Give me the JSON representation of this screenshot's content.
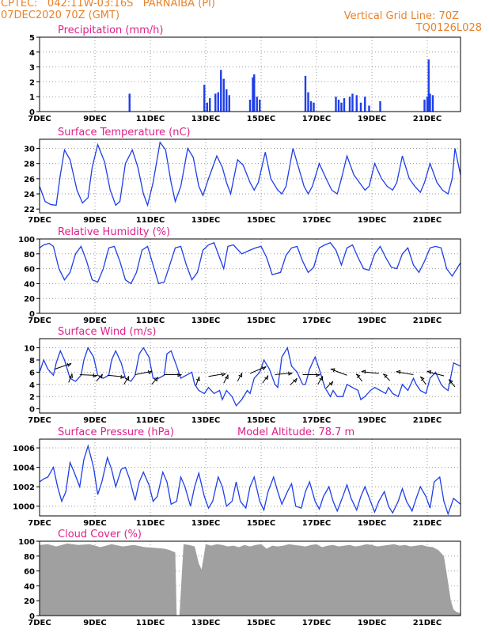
{
  "header": {
    "line1": "CPTEC:   042:11W-03:16S   PARNAIBA (PI)",
    "line2": "07DEC2020 70Z (GMT)",
    "right1": "Vertical Grid Line: 70Z",
    "right2": "TQ0126L028"
  },
  "colors": {
    "header": "#e8822a",
    "title": "#e0208a",
    "series": "#1f3fe8",
    "cloud": "#a0a0a0",
    "wind_arrow": "#000000"
  },
  "x_tick_labels": [
    "7DEC",
    "9DEC",
    "11DEC",
    "13DEC",
    "15DEC",
    "17DEC",
    "19DEC",
    "21DEC"
  ],
  "x_tick_days": [
    7,
    9,
    11,
    13,
    15,
    17,
    19,
    21
  ],
  "chart_data": [
    {
      "id": "precip",
      "type": "bar",
      "title": "Precipitation (mm/h)",
      "ylim": [
        0,
        5
      ],
      "yticks": [
        0,
        1,
        2,
        3,
        4,
        5
      ],
      "xlim": [
        7,
        22.2
      ],
      "x": [
        10.25,
        12.95,
        13.05,
        13.15,
        13.35,
        13.45,
        13.55,
        13.65,
        13.75,
        13.85,
        14.6,
        14.7,
        14.75,
        14.85,
        14.95,
        16.6,
        16.7,
        16.8,
        16.9,
        17.7,
        17.8,
        17.9,
        18.0,
        18.2,
        18.3,
        18.45,
        18.6,
        18.75,
        18.9,
        19.3,
        20.9,
        21.0,
        21.05,
        21.1,
        21.2
      ],
      "values": [
        1.2,
        1.8,
        0.6,
        0.9,
        1.2,
        1.3,
        2.8,
        2.2,
        1.5,
        1.1,
        0.8,
        2.3,
        2.5,
        1.0,
        0.8,
        2.4,
        1.3,
        0.7,
        0.6,
        1.0,
        0.8,
        0.6,
        0.9,
        1.0,
        1.2,
        1.1,
        0.6,
        1.0,
        0.4,
        0.7,
        0.8,
        1.0,
        3.5,
        1.2,
        1.1
      ]
    },
    {
      "id": "temp",
      "type": "line",
      "title": "Surface Temperature (nC)",
      "ylim": [
        21.5,
        31.2
      ],
      "yticks": [
        22,
        24,
        26,
        28,
        30
      ],
      "xlim": [
        7,
        22.2
      ],
      "x": [
        7.0,
        7.1,
        7.2,
        7.3,
        7.4,
        7.6,
        7.75,
        7.9,
        8.1,
        8.35,
        8.55,
        8.75,
        8.9,
        9.1,
        9.35,
        9.55,
        9.75,
        9.9,
        10.1,
        10.35,
        10.55,
        10.75,
        10.9,
        11.1,
        11.35,
        11.55,
        11.75,
        11.9,
        12.1,
        12.35,
        12.55,
        12.75,
        12.9,
        13.1,
        13.4,
        13.6,
        13.75,
        13.9,
        14.15,
        14.35,
        14.6,
        14.75,
        14.9,
        15.15,
        15.35,
        15.6,
        15.75,
        15.9,
        16.15,
        16.35,
        16.55,
        16.7,
        16.85,
        17.1,
        17.35,
        17.55,
        17.75,
        17.9,
        18.1,
        18.35,
        18.55,
        18.75,
        18.9,
        19.1,
        19.35,
        19.55,
        19.75,
        19.9,
        20.1,
        20.35,
        20.55,
        20.75,
        20.9,
        21.1,
        21.35,
        21.55,
        21.75,
        21.9,
        22.0,
        22.2
      ],
      "values": [
        25.0,
        24.0,
        23.0,
        22.8,
        22.6,
        22.5,
        26.5,
        29.8,
        28.5,
        24.5,
        22.8,
        23.5,
        27.5,
        30.5,
        28.2,
        24.5,
        22.5,
        23.0,
        28.0,
        29.8,
        27.5,
        24.0,
        22.5,
        25.5,
        30.8,
        29.8,
        25.5,
        23.0,
        25.0,
        30.0,
        28.8,
        25.0,
        23.8,
        26.0,
        29.0,
        27.5,
        25.5,
        24.0,
        28.5,
        27.8,
        25.5,
        24.5,
        25.5,
        29.5,
        26.0,
        24.5,
        24.0,
        25.0,
        30.0,
        27.5,
        25.0,
        24.0,
        25.0,
        28.0,
        26.0,
        24.5,
        24.0,
        26.0,
        29.0,
        26.5,
        25.5,
        24.5,
        25.0,
        28.0,
        26.0,
        25.0,
        24.5,
        25.5,
        29.0,
        26.0,
        25.0,
        24.2,
        25.5,
        28.0,
        25.5,
        24.5,
        24.0,
        26.0,
        30.0,
        26.5
      ]
    },
    {
      "id": "rh",
      "type": "line",
      "title": "Relative Humidity (%)",
      "ylim": [
        0,
        100
      ],
      "yticks": [
        0,
        20,
        40,
        60,
        80,
        100
      ],
      "xlim": [
        7,
        22.2
      ],
      "x": [
        7.0,
        7.15,
        7.35,
        7.5,
        7.7,
        7.9,
        8.1,
        8.3,
        8.5,
        8.7,
        8.9,
        9.1,
        9.3,
        9.5,
        9.7,
        9.9,
        10.1,
        10.3,
        10.5,
        10.7,
        10.9,
        11.1,
        11.3,
        11.5,
        11.7,
        11.9,
        12.1,
        12.3,
        12.5,
        12.7,
        12.9,
        13.1,
        13.3,
        13.5,
        13.65,
        13.8,
        14.0,
        14.3,
        14.6,
        14.8,
        15.0,
        15.2,
        15.4,
        15.7,
        15.9,
        16.1,
        16.3,
        16.5,
        16.7,
        16.9,
        17.1,
        17.3,
        17.5,
        17.7,
        17.9,
        18.1,
        18.3,
        18.5,
        18.7,
        18.9,
        19.1,
        19.3,
        19.5,
        19.7,
        19.9,
        20.1,
        20.3,
        20.5,
        20.7,
        20.9,
        21.1,
        21.3,
        21.5,
        21.7,
        21.9,
        22.2
      ],
      "values": [
        88,
        92,
        94,
        90,
        60,
        45,
        55,
        80,
        90,
        70,
        45,
        42,
        60,
        88,
        90,
        70,
        45,
        40,
        55,
        85,
        90,
        65,
        40,
        42,
        65,
        88,
        90,
        65,
        45,
        55,
        85,
        92,
        95,
        75,
        60,
        90,
        92,
        80,
        85,
        88,
        90,
        75,
        52,
        55,
        78,
        88,
        90,
        70,
        55,
        62,
        88,
        92,
        95,
        85,
        65,
        88,
        92,
        75,
        60,
        58,
        80,
        90,
        75,
        62,
        60,
        80,
        88,
        65,
        55,
        70,
        88,
        90,
        88,
        60,
        50,
        68
      ]
    },
    {
      "id": "wind",
      "type": "line",
      "title": "Surface Wind (m/s)",
      "ylim": [
        -0.7,
        11.5
      ],
      "yticks": [
        0,
        2,
        4,
        6,
        8,
        10
      ],
      "xlim": [
        7,
        22.2
      ],
      "x": [
        7.0,
        7.15,
        7.3,
        7.5,
        7.6,
        7.75,
        7.9,
        8.1,
        8.3,
        8.5,
        8.6,
        8.75,
        8.95,
        9.1,
        9.3,
        9.5,
        9.6,
        9.75,
        9.95,
        10.1,
        10.3,
        10.45,
        10.6,
        10.75,
        10.95,
        11.1,
        11.3,
        11.5,
        11.6,
        11.75,
        11.95,
        12.1,
        12.3,
        12.5,
        12.6,
        12.75,
        12.95,
        13.1,
        13.3,
        13.5,
        13.6,
        13.75,
        13.95,
        14.1,
        14.3,
        14.5,
        14.6,
        14.75,
        14.95,
        15.1,
        15.3,
        15.5,
        15.6,
        15.75,
        15.95,
        16.1,
        16.3,
        16.5,
        16.6,
        16.75,
        16.95,
        17.1,
        17.3,
        17.5,
        17.6,
        17.75,
        17.95,
        18.1,
        18.3,
        18.5,
        18.6,
        18.75,
        18.95,
        19.1,
        19.3,
        19.5,
        19.6,
        19.75,
        19.95,
        20.1,
        20.3,
        20.5,
        20.6,
        20.75,
        20.95,
        21.1,
        21.3,
        21.5,
        21.6,
        21.75,
        21.95,
        22.2
      ],
      "values": [
        6.0,
        8.0,
        6.5,
        5.5,
        7.5,
        9.5,
        8.0,
        5.0,
        4.5,
        5.5,
        8.0,
        10.0,
        8.5,
        5.5,
        5.0,
        5.5,
        8.0,
        9.5,
        7.5,
        5.0,
        4.5,
        5.5,
        9.0,
        10.0,
        8.5,
        5.0,
        5.0,
        5.5,
        9.0,
        9.5,
        7.0,
        5.0,
        5.5,
        6.0,
        4.0,
        3.0,
        2.5,
        3.5,
        2.5,
        3.0,
        1.5,
        3.0,
        2.0,
        0.5,
        1.5,
        3.0,
        2.5,
        5.0,
        6.0,
        8.0,
        6.5,
        4.0,
        3.5,
        8.5,
        10.0,
        7.0,
        6.0,
        4.0,
        4.0,
        6.5,
        8.5,
        6.5,
        3.5,
        2.0,
        3.0,
        2.0,
        2.0,
        4.0,
        3.5,
        3.0,
        1.5,
        2.0,
        3.0,
        3.5,
        3.0,
        2.5,
        3.5,
        2.5,
        2.0,
        4.0,
        3.0,
        5.0,
        4.0,
        3.0,
        2.5,
        5.0,
        6.0,
        4.0,
        3.5,
        3.0,
        7.5,
        7.0
      ],
      "arrows": [
        {
          "x": 7.55,
          "y": 6.5,
          "u": 1.0,
          "v": 0.35
        },
        {
          "x": 8.45,
          "y": 5.6,
          "u": 1.0,
          "v": -0.05
        },
        {
          "x": 9.45,
          "y": 5.5,
          "u": 1.0,
          "v": -0.1
        },
        {
          "x": 10.45,
          "y": 5.6,
          "u": 1.0,
          "v": 0.2
        },
        {
          "x": 11.5,
          "y": 5.6,
          "u": 1.0,
          "v": 0.0
        },
        {
          "x": 13.1,
          "y": 5.3,
          "u": 0.6,
          "v": 0.1
        },
        {
          "x": 14.6,
          "y": 5.8,
          "u": 0.7,
          "v": 0.3
        },
        {
          "x": 15.5,
          "y": 5.6,
          "u": 1.0,
          "v": 0.1
        },
        {
          "x": 16.5,
          "y": 5.6,
          "u": 1.0,
          "v": 0.0
        },
        {
          "x": 18.1,
          "y": 5.5,
          "u": -0.8,
          "v": 0.3
        },
        {
          "x": 19.25,
          "y": 5.8,
          "u": -1.0,
          "v": 0.1
        },
        {
          "x": 20.5,
          "y": 5.6,
          "u": -0.9,
          "v": 0.15
        },
        {
          "x": 21.6,
          "y": 5.4,
          "u": -1.0,
          "v": 0.25
        }
      ],
      "arrow_tails": [
        {
          "x": 8.05,
          "y": 4.3,
          "u": 0.3,
          "v": 0.8
        },
        {
          "x": 9.05,
          "y": 4.5,
          "u": 0.5,
          "v": 0.6
        },
        {
          "x": 10.05,
          "y": 4.0,
          "u": 0.4,
          "v": 0.7
        },
        {
          "x": 11.05,
          "y": 4.0,
          "u": 0.5,
          "v": 0.6
        },
        {
          "x": 12.65,
          "y": 3.8,
          "u": 0.3,
          "v": 0.9
        },
        {
          "x": 13.65,
          "y": 4.2,
          "u": 0.4,
          "v": 0.8
        },
        {
          "x": 14.15,
          "y": 4.5,
          "u": 0.4,
          "v": 0.8
        },
        {
          "x": 15.05,
          "y": 4.2,
          "u": 0.5,
          "v": 0.7
        },
        {
          "x": 16.05,
          "y": 3.9,
          "u": 0.6,
          "v": 0.6
        },
        {
          "x": 17.05,
          "y": 4.0,
          "u": 0.4,
          "v": 0.7
        },
        {
          "x": 17.35,
          "y": 3.4,
          "u": 0.6,
          "v": 0.6
        },
        {
          "x": 18.65,
          "y": 4.5,
          "u": -0.5,
          "v": 0.6
        },
        {
          "x": 19.65,
          "y": 4.6,
          "u": -0.6,
          "v": 0.6
        },
        {
          "x": 20.95,
          "y": 4.0,
          "u": -0.5,
          "v": 0.7
        },
        {
          "x": 22.0,
          "y": 3.6,
          "u": -0.6,
          "v": 0.7
        }
      ]
    },
    {
      "id": "press",
      "type": "line",
      "title": "Surface Pressure (hPa)",
      "annotation": "Model Altitude: 78.7 m",
      "ylim": [
        999.0,
        1006.9
      ],
      "yticks": [
        1000,
        1002,
        1004,
        1006
      ],
      "xlim": [
        7,
        22.2
      ],
      "x": [
        7.0,
        7.15,
        7.3,
        7.5,
        7.65,
        7.8,
        7.95,
        8.1,
        8.25,
        8.45,
        8.6,
        8.75,
        8.95,
        9.1,
        9.25,
        9.45,
        9.6,
        9.75,
        9.95,
        10.1,
        10.25,
        10.45,
        10.6,
        10.75,
        10.95,
        11.1,
        11.25,
        11.45,
        11.6,
        11.75,
        11.95,
        12.1,
        12.25,
        12.45,
        12.6,
        12.75,
        12.95,
        13.1,
        13.25,
        13.45,
        13.6,
        13.75,
        13.95,
        14.1,
        14.25,
        14.45,
        14.6,
        14.75,
        14.95,
        15.1,
        15.25,
        15.45,
        15.6,
        15.75,
        15.95,
        16.1,
        16.25,
        16.45,
        16.6,
        16.75,
        16.95,
        17.1,
        17.25,
        17.45,
        17.6,
        17.75,
        17.95,
        18.1,
        18.25,
        18.45,
        18.6,
        18.75,
        18.95,
        19.1,
        19.25,
        19.45,
        19.6,
        19.75,
        19.95,
        20.1,
        20.25,
        20.45,
        20.6,
        20.75,
        20.95,
        21.1,
        21.25,
        21.45,
        21.6,
        21.75,
        21.95,
        22.2
      ],
      "values": [
        1002.5,
        1002.8,
        1003.0,
        1004.0,
        1002.0,
        1000.5,
        1001.5,
        1004.5,
        1003.5,
        1002.0,
        1004.8,
        1006.2,
        1004.0,
        1001.2,
        1002.5,
        1005.0,
        1003.8,
        1002.0,
        1003.8,
        1004.0,
        1002.8,
        1000.6,
        1002.5,
        1003.5,
        1002.2,
        1000.5,
        1001.0,
        1003.5,
        1002.5,
        1000.2,
        1000.5,
        1003.0,
        1002.0,
        1000.0,
        1002.0,
        1003.4,
        1001.0,
        999.8,
        1000.5,
        1003.0,
        1002.0,
        1000.0,
        1000.5,
        1002.5,
        1000.5,
        999.8,
        1002.0,
        1003.0,
        1000.5,
        999.6,
        1001.5,
        1003.0,
        1001.5,
        1000.2,
        1001.5,
        1002.3,
        1000.0,
        999.8,
        1001.5,
        1002.5,
        1000.5,
        999.7,
        1001.0,
        1002.0,
        1000.5,
        999.5,
        1001.0,
        1002.2,
        1000.8,
        999.6,
        1001.0,
        1002.0,
        1000.5,
        999.4,
        1000.5,
        1001.5,
        1000.0,
        999.3,
        1000.5,
        1001.8,
        1000.5,
        999.5,
        1000.8,
        1002.0,
        1001.0,
        999.8,
        1002.5,
        1003.0,
        1000.5,
        999.2,
        1000.8,
        1000.2
      ]
    },
    {
      "id": "cloud",
      "type": "area",
      "title": "Cloud Cover (%)",
      "ylim": [
        0,
        100
      ],
      "yticks": [
        0,
        20,
        40,
        60,
        80,
        100
      ],
      "xlim": [
        7,
        22.2
      ],
      "x": [
        7.0,
        7.3,
        7.6,
        8.0,
        8.4,
        8.8,
        9.2,
        9.6,
        10.0,
        10.4,
        10.8,
        11.2,
        11.5,
        11.7,
        11.9,
        11.95,
        12.05,
        12.2,
        12.4,
        12.6,
        12.75,
        12.85,
        13.0,
        13.2,
        13.4,
        13.6,
        13.8,
        14.0,
        14.2,
        14.4,
        14.6,
        14.8,
        15.0,
        15.2,
        15.4,
        15.6,
        15.8,
        16.0,
        16.2,
        16.4,
        16.6,
        16.8,
        17.0,
        17.2,
        17.4,
        17.6,
        17.8,
        18.0,
        18.2,
        18.4,
        18.6,
        18.8,
        19.0,
        19.2,
        19.4,
        19.6,
        19.8,
        20.0,
        20.2,
        20.4,
        20.6,
        20.8,
        21.0,
        21.2,
        21.4,
        21.6,
        21.75,
        21.85,
        21.95,
        22.05,
        22.2
      ],
      "values": [
        95,
        96,
        93,
        97,
        95,
        96,
        92,
        96,
        93,
        95,
        92,
        91,
        90,
        88,
        85,
        0,
        0,
        96,
        95,
        93,
        70,
        62,
        96,
        94,
        96,
        95,
        93,
        94,
        92,
        95,
        93,
        95,
        96,
        90,
        94,
        93,
        94,
        96,
        95,
        94,
        93,
        95,
        96,
        92,
        94,
        95,
        93,
        94,
        95,
        93,
        94,
        96,
        95,
        93,
        94,
        95,
        96,
        94,
        95,
        93,
        94,
        95,
        93,
        92,
        88,
        80,
        45,
        20,
        8,
        5,
        3
      ]
    }
  ]
}
